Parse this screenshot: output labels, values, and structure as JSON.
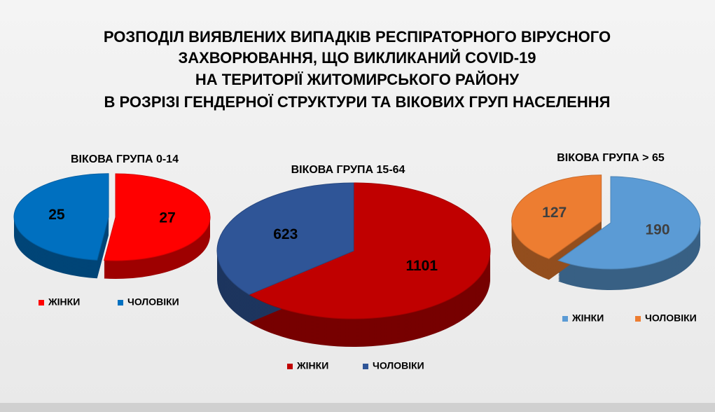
{
  "title": [
    "РОЗПОДІЛ ВИЯВЛЕНИХ ВИПАДКІВ РЕСПІРАТОРНОГО ВІРУСНОГО",
    "ЗАХВОРЮВАННЯ, ЩО ВИКЛИКАНИЙ COVID-19",
    "НА ТЕРИТОРІЇ ЖИТОМИРСЬКОГО РАЙОНУ",
    "В РОЗРІЗІ ГЕНДЕРНОЇ СТРУКТУРИ ТА ВІКОВИХ ГРУП НАСЕЛЕННЯ"
  ],
  "chart_data": [
    {
      "type": "pie",
      "title": "ВІКОВА ГРУПА 0-14",
      "categories": [
        "ЖІНКИ",
        "ЧОЛОВІКИ"
      ],
      "values": [
        27,
        25
      ],
      "colors": [
        "#ff0000",
        "#0070c0"
      ]
    },
    {
      "type": "pie",
      "title": "ВІКОВА ГРУПА 15-64",
      "categories": [
        "ЖІНКИ",
        "ЧОЛОВІКИ"
      ],
      "values": [
        1101,
        623
      ],
      "colors": [
        "#c00000",
        "#2f5597"
      ]
    },
    {
      "type": "pie",
      "title": "ВІКОВА ГРУПА > 65",
      "categories": [
        "ЖІНКИ",
        "ЧОЛОВІКИ"
      ],
      "values": [
        190,
        127
      ],
      "colors": [
        "#5b9bd5",
        "#ed7d31"
      ]
    }
  ]
}
